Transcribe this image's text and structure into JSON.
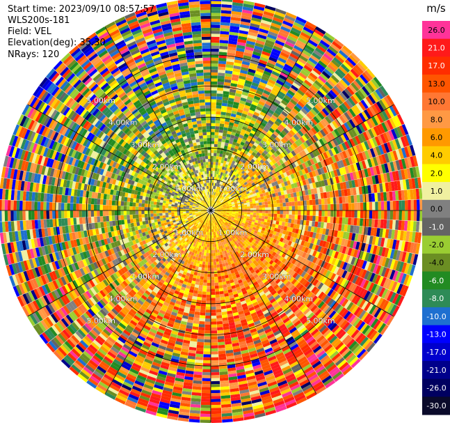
{
  "header": {
    "start_time": "Start time: 2023/09/10 08:57:57",
    "instrument": "WLS200s-181",
    "field": "Field: VEL",
    "elevation": "Elevation(deg): 35.30",
    "nrays": "NRays: 120"
  },
  "chart_data": {
    "type": "heatmap",
    "projection": "polar-ppi",
    "title": "",
    "field": "VEL",
    "nrays": 120,
    "elevation_deg": 35.3,
    "ring_labels": [
      "1.00km",
      "2.00km",
      "3.00km",
      "4.00km",
      "5.00km"
    ],
    "ring_ranges_km": [
      1,
      2,
      3,
      4,
      5
    ],
    "max_range_km": 6.4,
    "spoke_angles_deg": [
      0,
      30,
      60,
      90,
      120,
      150,
      180,
      210,
      240,
      270,
      300,
      330
    ],
    "colorbar": {
      "unit": "m/s",
      "range": [
        -30,
        26
      ],
      "tick_labels": [
        "26.0",
        "21.0",
        "17.0",
        "13.0",
        "10.0",
        "8.0",
        "6.0",
        "4.0",
        "2.0",
        "1.0",
        "0.0",
        "-1.0",
        "-2.0",
        "-4.0",
        "-6.0",
        "-8.0",
        "-10.0",
        "-13.0",
        "-17.0",
        "-21.0",
        "-26.0",
        "-30.0"
      ],
      "colors": [
        "#ff3399",
        "#ff1a1a",
        "#ff2d00",
        "#ff5500",
        "#ff7733",
        "#ff9944",
        "#ff9900",
        "#ffcc00",
        "#ffff00",
        "#f0f0a0",
        "#808080",
        "#646464",
        "#9acd32",
        "#6b8e23",
        "#228b22",
        "#2e8b57",
        "#1e6fd0",
        "#0000ff",
        "#0000cd",
        "#00008b",
        "#000060",
        "#0a0a2a"
      ]
    }
  }
}
